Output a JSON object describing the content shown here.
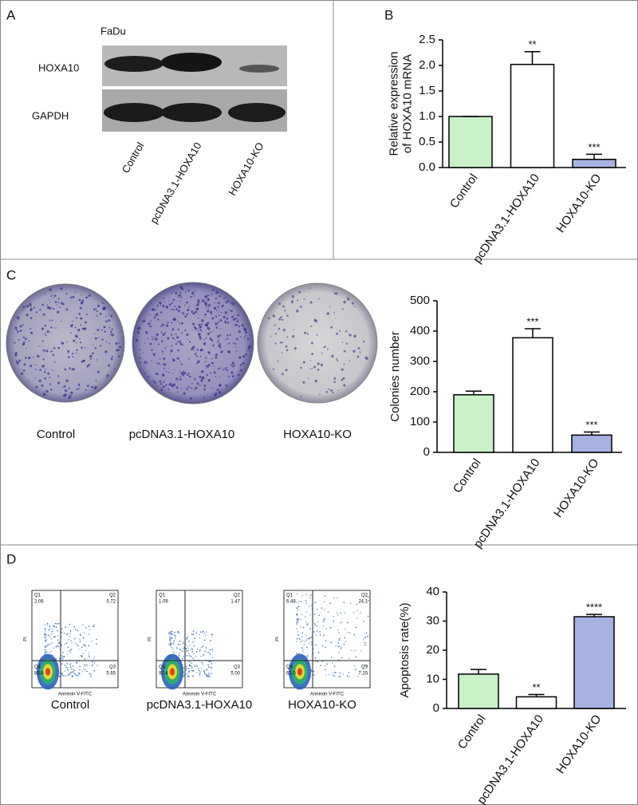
{
  "panels": {
    "a": {
      "letter": "A",
      "cell_line": "FaDu",
      "bands": [
        "HOXA10",
        "GAPDH"
      ],
      "lanes": [
        "Control",
        "pcDNA3.1-HOXA10",
        "HOXA10-KO"
      ]
    },
    "b": {
      "letter": "B"
    },
    "c": {
      "letter": "C",
      "dishes": [
        "Control",
        "pcDNA3.1-HOXA10",
        "HOXA10-KO"
      ]
    },
    "d": {
      "letter": "D",
      "x_axis": "Annexin V-FITC",
      "y_axis": "PI",
      "plots": [
        {
          "title": "Control",
          "quadrants": [
            {
              "name": "Q1",
              "value": "2.06"
            },
            {
              "name": "Q2",
              "value": "5.72"
            },
            {
              "name": "Q3",
              "value": "5.65"
            },
            {
              "name": "Q4",
              "value": "86.6"
            }
          ]
        },
        {
          "title": "pcDNA3.1-HOXA10",
          "quadrants": [
            {
              "name": "Q1",
              "value": "1.09"
            },
            {
              "name": "Q2",
              "value": "1.47"
            },
            {
              "name": "Q3",
              "value": "5.00"
            },
            {
              "name": "Q4",
              "value": "92.4"
            }
          ]
        },
        {
          "title": "HOXA10-KO",
          "quadrants": [
            {
              "name": "Q1",
              "value": "6.48"
            },
            {
              "name": "Q2",
              "value": "24.1"
            },
            {
              "name": "Q3",
              "value": "7.20"
            },
            {
              "name": "Q4",
              "value": "62.0"
            }
          ]
        }
      ]
    }
  },
  "chart_data": [
    {
      "type": "bar",
      "ylabel": [
        "Relative expression",
        "of HOXA10 mRNA"
      ],
      "categories": [
        "Control",
        "pcDNA3.1-HOXA10",
        "HOXA10-KO"
      ],
      "values": [
        1.0,
        2.02,
        0.16
      ],
      "error": [
        0,
        0.25,
        0.1
      ],
      "annotations": [
        null,
        "**",
        "***"
      ],
      "colors": [
        "#c9f2c9",
        "#ffffff",
        "#a8b2e2"
      ],
      "ylim": [
        0,
        2.5
      ],
      "yticks": [
        {
          "value": 0,
          "label": "0.0"
        },
        0.5,
        {
          "value": 1,
          "label": "1.0"
        },
        1.5,
        {
          "value": 2,
          "label": "2.0"
        },
        2.5
      ]
    },
    {
      "type": "bar",
      "ylabel": [
        "Colonies number"
      ],
      "categories": [
        "Control",
        "pcDNA3.1-HOXA10",
        "HOXA10-KO"
      ],
      "values": [
        190,
        378,
        57
      ],
      "error": [
        12,
        30,
        10
      ],
      "annotations": [
        null,
        "***",
        "***"
      ],
      "colors": [
        "#c9f2c9",
        "#ffffff",
        "#a8b2e2"
      ],
      "ylim": [
        0,
        500
      ],
      "yticks": [
        0,
        100,
        200,
        300,
        400,
        500
      ]
    },
    {
      "type": "bar",
      "ylabel": [
        "Apoptosis rate(%)"
      ],
      "categories": [
        "Control",
        "pcDNA3.1-HOXA10",
        "HOXA10-KO"
      ],
      "values": [
        11.8,
        4.0,
        31.5
      ],
      "error": [
        1.6,
        0.8,
        0.8
      ],
      "annotations": [
        null,
        "**",
        "****"
      ],
      "colors": [
        "#c9f2c9",
        "#ffffff",
        "#a8b2e2"
      ],
      "ylim": [
        0,
        40
      ],
      "yticks": [
        0,
        10,
        20,
        30,
        40
      ]
    }
  ]
}
